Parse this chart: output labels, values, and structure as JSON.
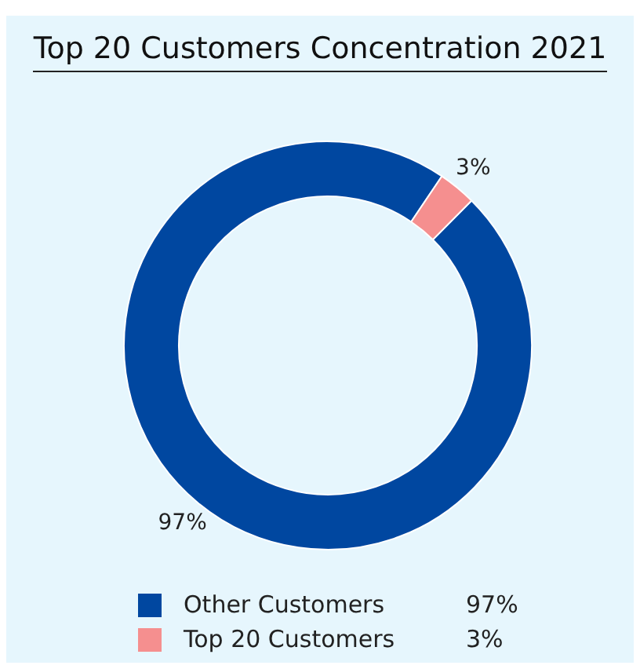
{
  "chart_data": {
    "type": "donut",
    "title": "Top 20 Customers Concentration 2021",
    "categories": [
      "Other Customers",
      "Top 20 Customers"
    ],
    "values": [
      97,
      3
    ],
    "colors": [
      "#0047a0",
      "#f58f8f"
    ],
    "value_labels": [
      "97%",
      "3%"
    ],
    "legend": "bottom"
  }
}
